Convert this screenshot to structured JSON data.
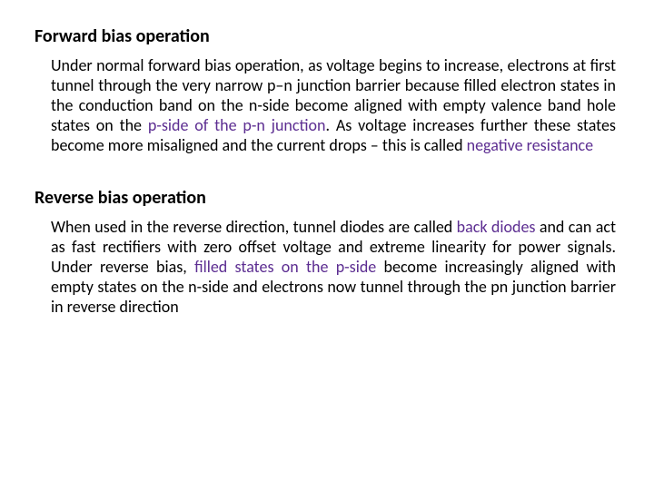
{
  "colors": {
    "text": "#000000",
    "highlight": "#5c2d91",
    "background": "#ffffff"
  },
  "section1": {
    "heading": "Forward bias operation",
    "p_a": "Under normal forward bias operation, as voltage begins to increase, electrons at first tunnel through the very narrow p–n junction barrier because filled electron states in the conduction band on the n-side become aligned with empty valence band hole states on the ",
    "p_b": "p-side of the p-n junction",
    "p_c": ". As voltage increases further these states become more misaligned and the current drops – this is called ",
    "p_d": "negative resistance"
  },
  "section2": {
    "heading": "Reverse bias operation",
    "p_a": "When used in the reverse direction, tunnel diodes are called ",
    "p_b": "back diodes",
    "p_c": " and can act as fast rectifiers with zero offset voltage and extreme linearity for power signals. Under reverse bias, ",
    "p_d": "filled states on the p-side",
    "p_e": " become increasingly aligned with empty states on the n-side and electrons now tunnel through the pn junction barrier in reverse direction"
  }
}
